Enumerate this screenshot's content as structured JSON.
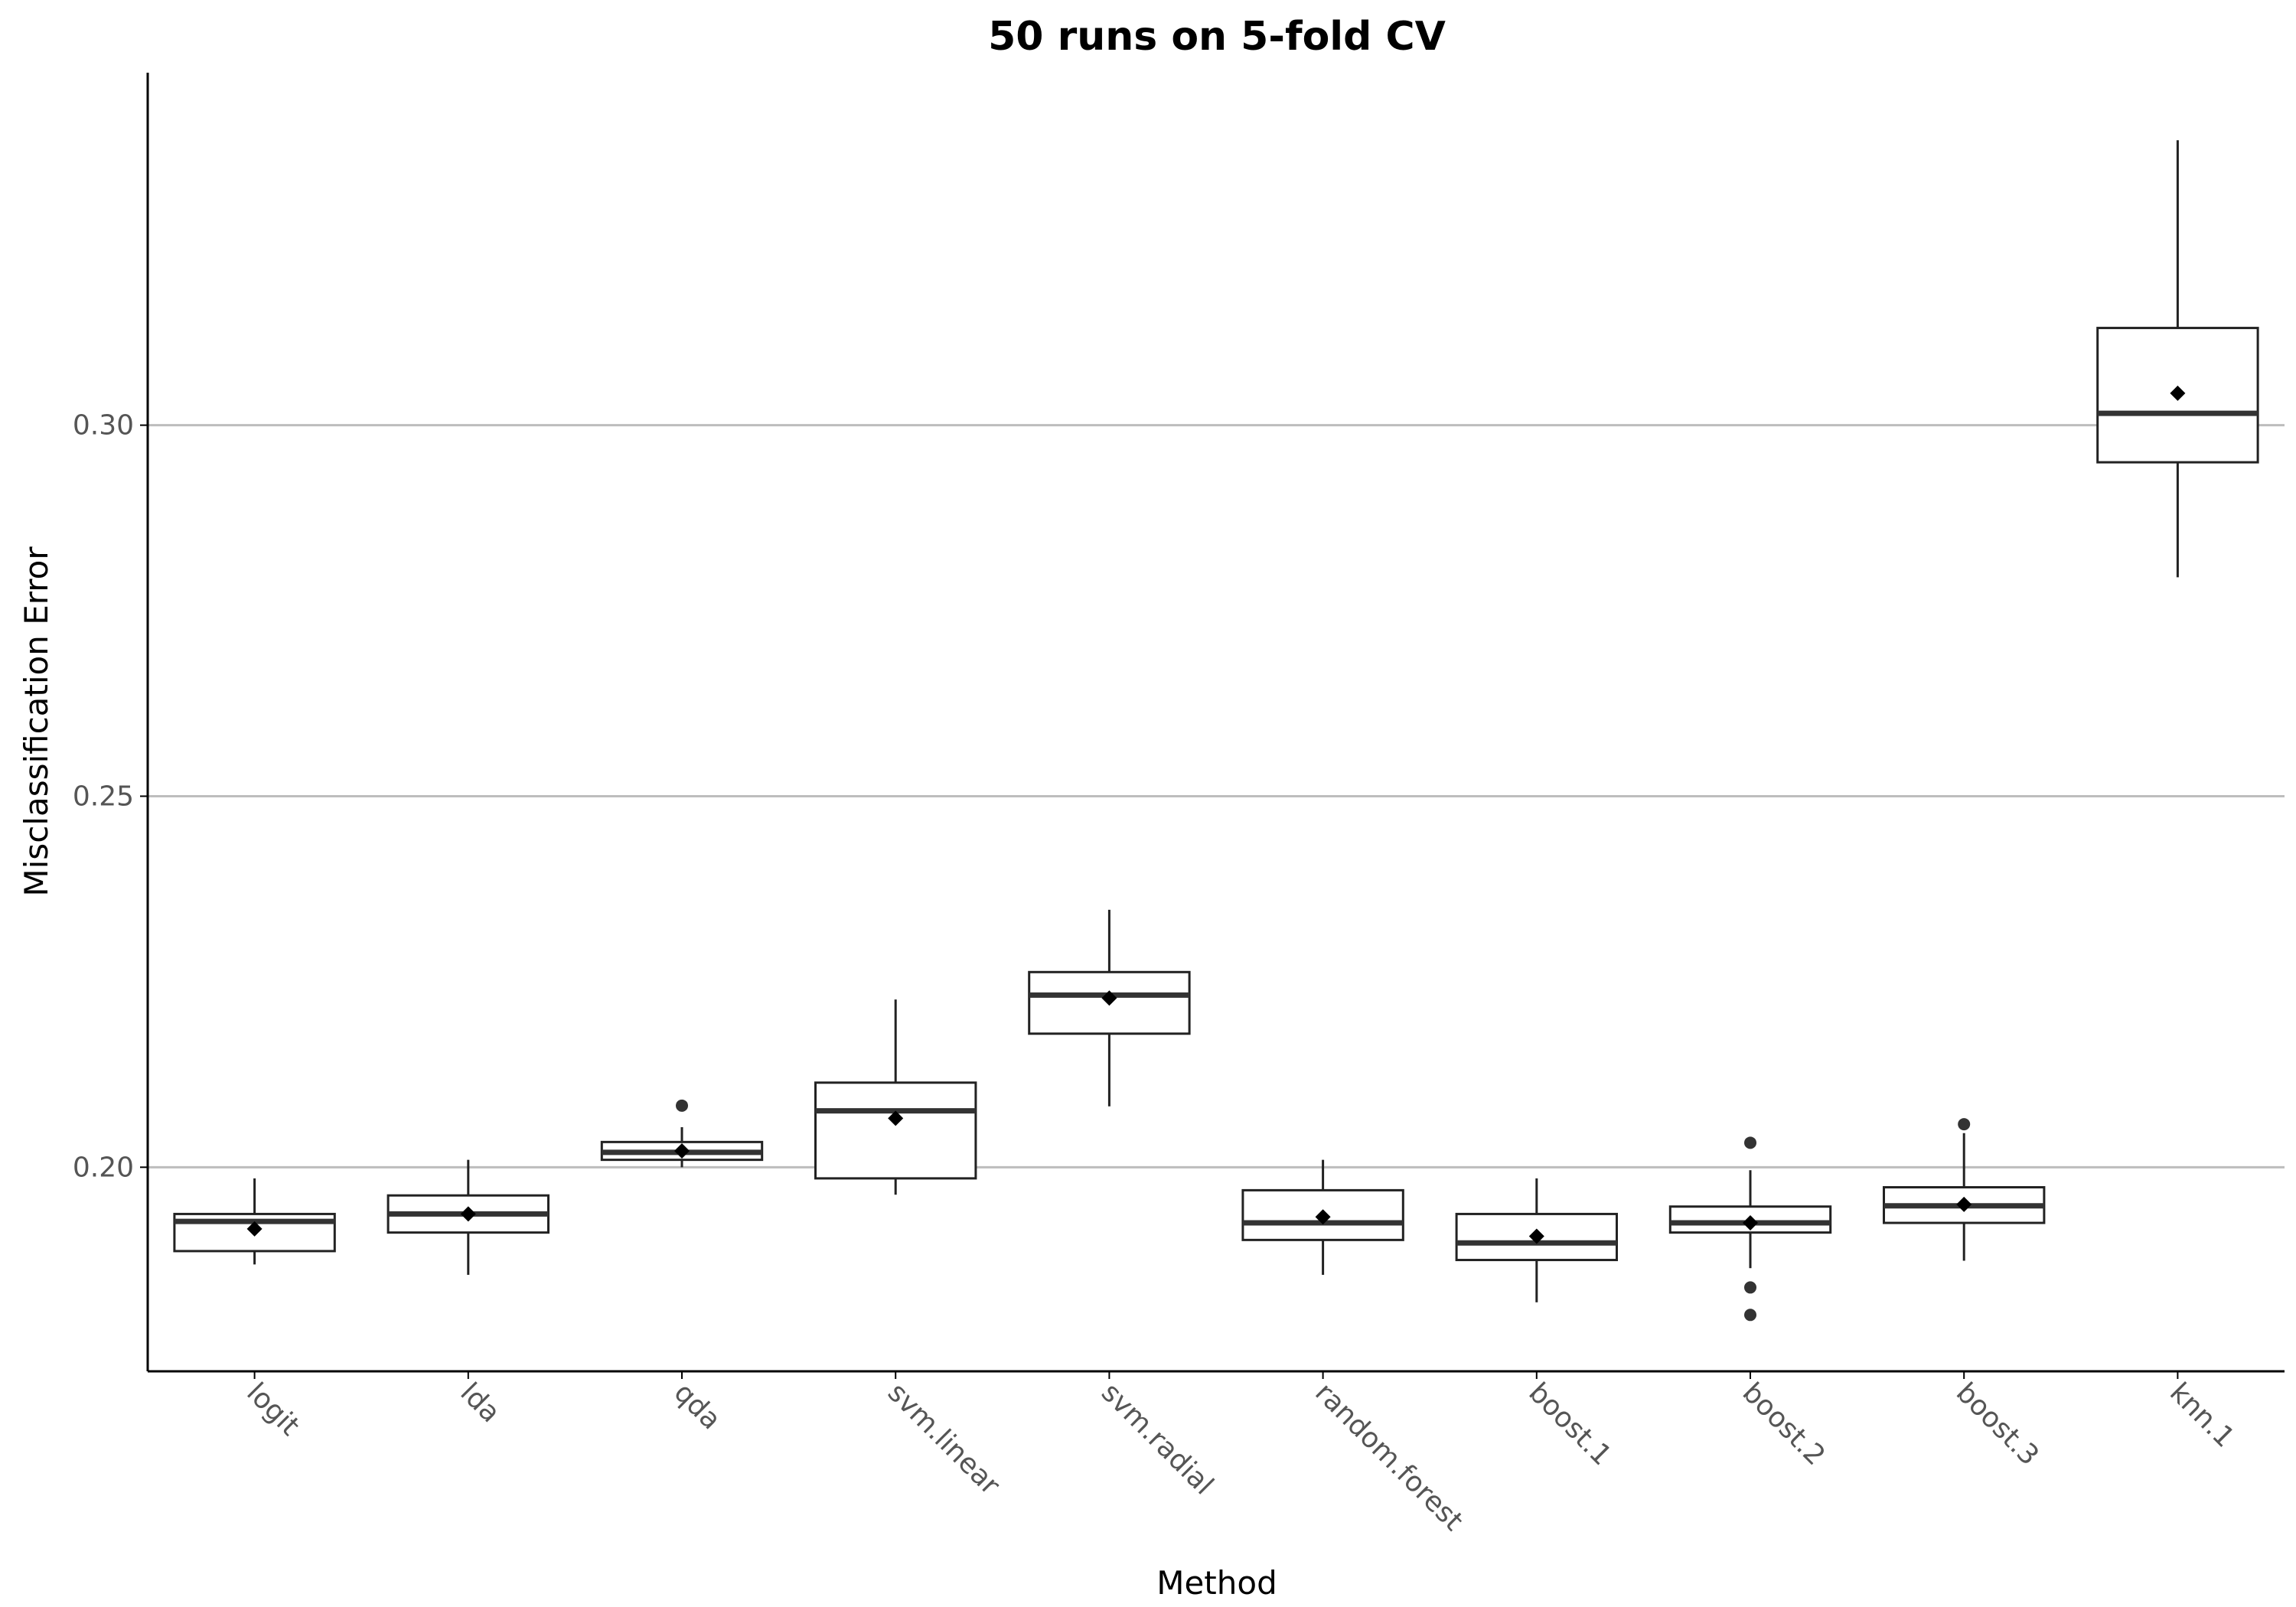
{
  "chart_data": {
    "type": "box",
    "title": "50 runs on 5-fold CV",
    "xlabel": "Method",
    "ylabel": "Misclassification Error",
    "ylim": [
      0.1725,
      0.3475
    ],
    "yticks": [
      0.2,
      0.25,
      0.3
    ],
    "ytick_labels": [
      "0.20",
      "0.25",
      "0.30"
    ],
    "grid": "horizontal major only",
    "legend": "none",
    "categories": [
      "logit",
      "lda",
      "qda",
      "svm.linear",
      "svm.radial",
      "random.forest",
      "boost.1",
      "boost.2",
      "boost.3",
      "knn.1"
    ],
    "boxes": [
      {
        "method": "logit",
        "whisker_low": 0.1869,
        "q1": 0.1887,
        "median": 0.1927,
        "q3": 0.1937,
        "whisker_high": 0.1985,
        "mean": 0.1917,
        "outliers": []
      },
      {
        "method": "lda",
        "whisker_low": 0.1855,
        "q1": 0.1912,
        "median": 0.1937,
        "q3": 0.1962,
        "whisker_high": 0.201,
        "mean": 0.1937,
        "outliers": []
      },
      {
        "method": "qda",
        "whisker_low": 0.2,
        "q1": 0.201,
        "median": 0.202,
        "q3": 0.2034,
        "whisker_high": 0.2054,
        "mean": 0.2022,
        "outliers": [
          0.2083
        ]
      },
      {
        "method": "svm.linear",
        "whisker_low": 0.1963,
        "q1": 0.1985,
        "median": 0.2076,
        "q3": 0.2114,
        "whisker_high": 0.2226,
        "mean": 0.2066,
        "outliers": []
      },
      {
        "method": "svm.radial",
        "whisker_low": 0.2082,
        "q1": 0.218,
        "median": 0.2232,
        "q3": 0.2263,
        "whisker_high": 0.2347,
        "mean": 0.2228,
        "outliers": []
      },
      {
        "method": "random.forest",
        "whisker_low": 0.1855,
        "q1": 0.1902,
        "median": 0.1925,
        "q3": 0.1969,
        "whisker_high": 0.201,
        "mean": 0.1933,
        "outliers": []
      },
      {
        "method": "boost.1",
        "whisker_low": 0.1818,
        "q1": 0.1875,
        "median": 0.1898,
        "q3": 0.1937,
        "whisker_high": 0.1985,
        "mean": 0.1907,
        "outliers": []
      },
      {
        "method": "boost.2",
        "whisker_low": 0.1864,
        "q1": 0.1912,
        "median": 0.1925,
        "q3": 0.1947,
        "whisker_high": 0.1996,
        "mean": 0.1925,
        "outliers": [
          0.2033,
          0.1838,
          0.1801
        ]
      },
      {
        "method": "boost.3",
        "whisker_low": 0.1874,
        "q1": 0.1925,
        "median": 0.1948,
        "q3": 0.1973,
        "whisker_high": 0.2046,
        "mean": 0.195,
        "outliers": [
          0.2058
        ]
      },
      {
        "method": "knn.1",
        "whisker_low": 0.2795,
        "q1": 0.295,
        "median": 0.3016,
        "q3": 0.3131,
        "whisker_high": 0.3384,
        "mean": 0.3043,
        "outliers": []
      }
    ],
    "colors": {
      "box_stroke": "#222222",
      "median": "#333333",
      "grid": "#bdbdbd",
      "axis": "#000000",
      "points": "#000000",
      "tick_text": "#555555"
    }
  }
}
